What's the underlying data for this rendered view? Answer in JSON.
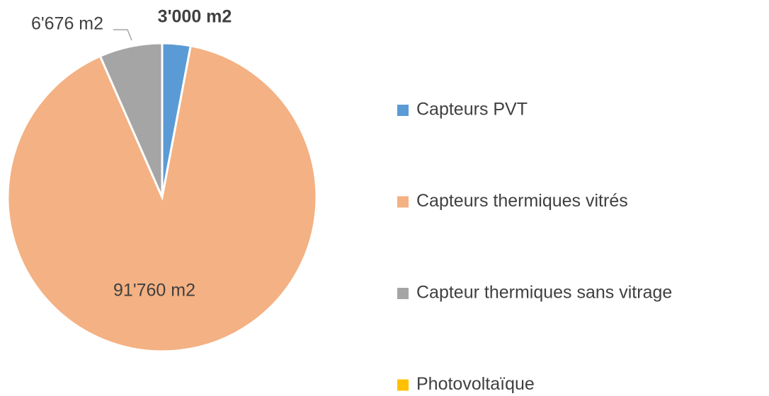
{
  "chart_data": {
    "type": "pie",
    "categories": [
      "Capteurs PVT",
      "Capteurs thermiques vitrés",
      "Capteur thermiques sans vitrage",
      "Photovoltaïque"
    ],
    "values": [
      3000,
      91760,
      6676,
      0
    ],
    "value_labels": [
      "3'000 m2",
      "91'760 m2",
      "6'676 m2",
      null
    ],
    "colors": [
      "#5b9bd5",
      "#f4b183",
      "#a5a5a5",
      "#ffc000"
    ],
    "legend": "right"
  }
}
